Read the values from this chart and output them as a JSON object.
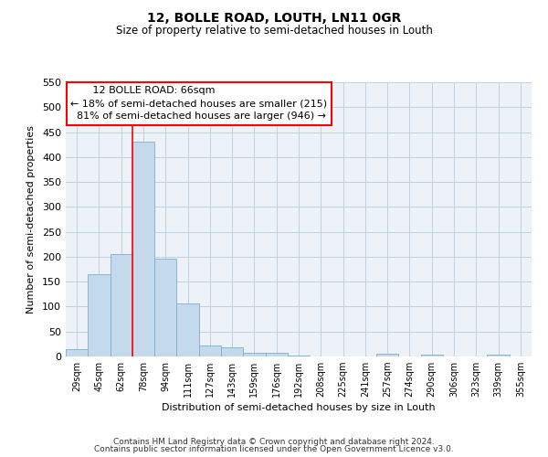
{
  "title": "12, BOLLE ROAD, LOUTH, LN11 0GR",
  "subtitle": "Size of property relative to semi-detached houses in Louth",
  "xlabel": "Distribution of semi-detached houses by size in Louth",
  "ylabel": "Number of semi-detached properties",
  "bar_color": "#c5d9ed",
  "bar_edge_color": "#7bafd4",
  "grid_color": "#c0d0e0",
  "background_color": "#edf2f8",
  "categories": [
    "29sqm",
    "45sqm",
    "62sqm",
    "78sqm",
    "94sqm",
    "111sqm",
    "127sqm",
    "143sqm",
    "159sqm",
    "176sqm",
    "192sqm",
    "208sqm",
    "225sqm",
    "241sqm",
    "257sqm",
    "274sqm",
    "290sqm",
    "306sqm",
    "323sqm",
    "339sqm",
    "355sqm"
  ],
  "values": [
    15,
    165,
    205,
    430,
    197,
    107,
    22,
    19,
    8,
    8,
    1,
    0,
    0,
    0,
    5,
    0,
    4,
    0,
    0,
    4,
    0
  ],
  "ylim": [
    0,
    550
  ],
  "yticks": [
    0,
    50,
    100,
    150,
    200,
    250,
    300,
    350,
    400,
    450,
    500,
    550
  ],
  "property_label": "12 BOLLE ROAD: 66sqm",
  "pct_smaller": 18,
  "pct_larger": 81,
  "n_smaller": 215,
  "n_larger": 946,
  "vline_x_index": 2.5,
  "footer_line1": "Contains HM Land Registry data © Crown copyright and database right 2024.",
  "footer_line2": "Contains public sector information licensed under the Open Government Licence v3.0."
}
